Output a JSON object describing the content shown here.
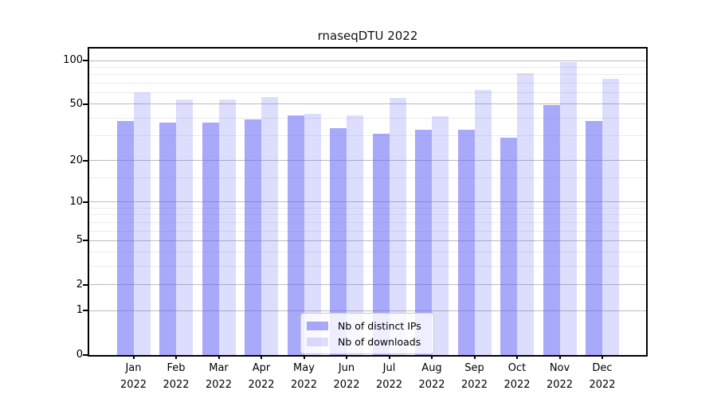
{
  "chart_data": {
    "type": "bar",
    "title": "rnaseqDTU 2022",
    "categories": [
      "Jan 2022",
      "Feb 2022",
      "Mar 2022",
      "Apr 2022",
      "May 2022",
      "Jun 2022",
      "Jul 2022",
      "Aug 2022",
      "Sep 2022",
      "Oct 2022",
      "Nov 2022",
      "Dec 2022"
    ],
    "series": [
      {
        "name": "Nb of distinct IPs",
        "color": "rgba(99,99,245,0.55)",
        "values": [
          38,
          37,
          37,
          39,
          42,
          34,
          31,
          33,
          33,
          29,
          49,
          38
        ]
      },
      {
        "name": "Nb of downloads",
        "color": "rgba(99,99,245,0.22)",
        "values": [
          60,
          54,
          54,
          56,
          43,
          42,
          55,
          41,
          63,
          82,
          97,
          75
        ]
      }
    ],
    "y_scale": "log1p",
    "ylim": [
      0,
      121
    ],
    "y_major_ticks": [
      0,
      1,
      2,
      5,
      10,
      20,
      50,
      100
    ],
    "y_minor_gridlines": [
      3,
      4,
      6,
      7,
      8,
      9,
      15,
      30,
      40,
      60,
      70,
      80,
      90
    ],
    "grid": "on",
    "legend_position": "lower center",
    "colors": {
      "grid_major": "#bbbbbb",
      "grid_minor": "#ebebeb",
      "axis": "#000000"
    }
  }
}
